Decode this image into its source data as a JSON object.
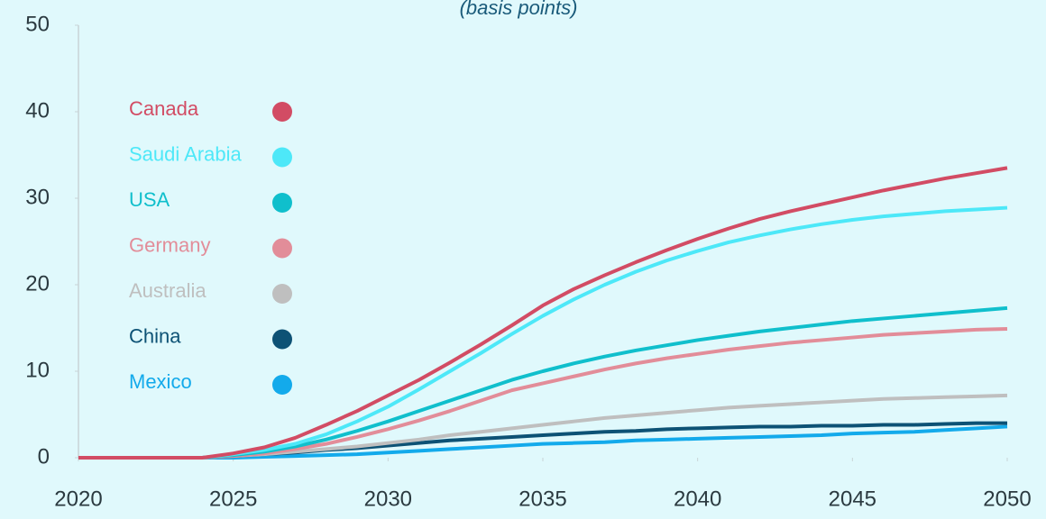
{
  "chart_data": {
    "type": "line",
    "subtitle": "(basis points)",
    "x": [
      2020,
      2021,
      2022,
      2023,
      2024,
      2025,
      2026,
      2027,
      2028,
      2029,
      2030,
      2031,
      2032,
      2033,
      2034,
      2035,
      2036,
      2037,
      2038,
      2039,
      2040,
      2041,
      2042,
      2043,
      2044,
      2045,
      2046,
      2047,
      2048,
      2049,
      2050
    ],
    "xlim": [
      2020,
      2050
    ],
    "xticks": [
      2020,
      2025,
      2030,
      2035,
      2040,
      2045,
      2050
    ],
    "ylim": [
      0,
      50
    ],
    "yticks": [
      0,
      10,
      20,
      30,
      40,
      50
    ],
    "legend": "upper left",
    "series": [
      {
        "name": "Canada",
        "color": "#d24c64",
        "values": [
          0,
          0,
          0,
          0,
          0,
          0.5,
          1.2,
          2.3,
          3.8,
          5.4,
          7.2,
          9.0,
          11.0,
          13.1,
          15.3,
          17.6,
          19.5,
          21.1,
          22.6,
          24.0,
          25.3,
          26.5,
          27.6,
          28.5,
          29.3,
          30.1,
          30.9,
          31.6,
          32.3,
          32.9,
          33.5
        ]
      },
      {
        "name": "Saudi Arabia",
        "color": "#4de8f8",
        "values": [
          0,
          0,
          0,
          0,
          0,
          0.4,
          0.9,
          1.6,
          2.7,
          4.2,
          5.9,
          7.9,
          10.0,
          12.1,
          14.3,
          16.4,
          18.3,
          20.0,
          21.5,
          22.8,
          23.9,
          24.9,
          25.7,
          26.4,
          27.0,
          27.5,
          27.9,
          28.2,
          28.5,
          28.7,
          28.9
        ]
      },
      {
        "name": "USA",
        "color": "#10bfcc",
        "values": [
          0,
          0,
          0,
          0,
          0,
          0.3,
          0.7,
          1.3,
          2.1,
          3.1,
          4.2,
          5.4,
          6.6,
          7.8,
          9.0,
          10.0,
          10.9,
          11.7,
          12.4,
          13.0,
          13.6,
          14.1,
          14.6,
          15.0,
          15.4,
          15.8,
          16.1,
          16.4,
          16.7,
          17.0,
          17.3
        ]
      },
      {
        "name": "Germany",
        "color": "#e28d99",
        "values": [
          0,
          0,
          0,
          0,
          0,
          0.2,
          0.5,
          1.0,
          1.6,
          2.4,
          3.3,
          4.3,
          5.4,
          6.6,
          7.8,
          8.6,
          9.4,
          10.2,
          10.9,
          11.5,
          12.0,
          12.5,
          12.9,
          13.3,
          13.6,
          13.9,
          14.2,
          14.4,
          14.6,
          14.8,
          14.9
        ]
      },
      {
        "name": "Australia",
        "color": "#bfbfbf",
        "values": [
          0,
          0,
          0,
          0,
          0,
          0.2,
          0.4,
          0.7,
          1.0,
          1.3,
          1.7,
          2.1,
          2.6,
          3.0,
          3.4,
          3.8,
          4.2,
          4.6,
          4.9,
          5.2,
          5.5,
          5.8,
          6.0,
          6.2,
          6.4,
          6.6,
          6.8,
          6.9,
          7.0,
          7.1,
          7.2
        ]
      },
      {
        "name": "China",
        "color": "#0d5275",
        "values": [
          0,
          0,
          0,
          0,
          0,
          0.2,
          0.4,
          0.6,
          0.9,
          1.1,
          1.4,
          1.7,
          2.0,
          2.2,
          2.4,
          2.6,
          2.8,
          3.0,
          3.1,
          3.3,
          3.4,
          3.5,
          3.6,
          3.6,
          3.7,
          3.7,
          3.8,
          3.8,
          3.9,
          4.0,
          4.0
        ]
      },
      {
        "name": "Mexico",
        "color": "#13aaeb",
        "values": [
          0,
          0,
          0,
          0,
          0,
          0,
          0.1,
          0.2,
          0.3,
          0.4,
          0.6,
          0.8,
          1.0,
          1.2,
          1.4,
          1.6,
          1.7,
          1.8,
          2.0,
          2.1,
          2.2,
          2.3,
          2.4,
          2.5,
          2.6,
          2.8,
          2.9,
          3.0,
          3.2,
          3.4,
          3.6
        ]
      }
    ]
  }
}
